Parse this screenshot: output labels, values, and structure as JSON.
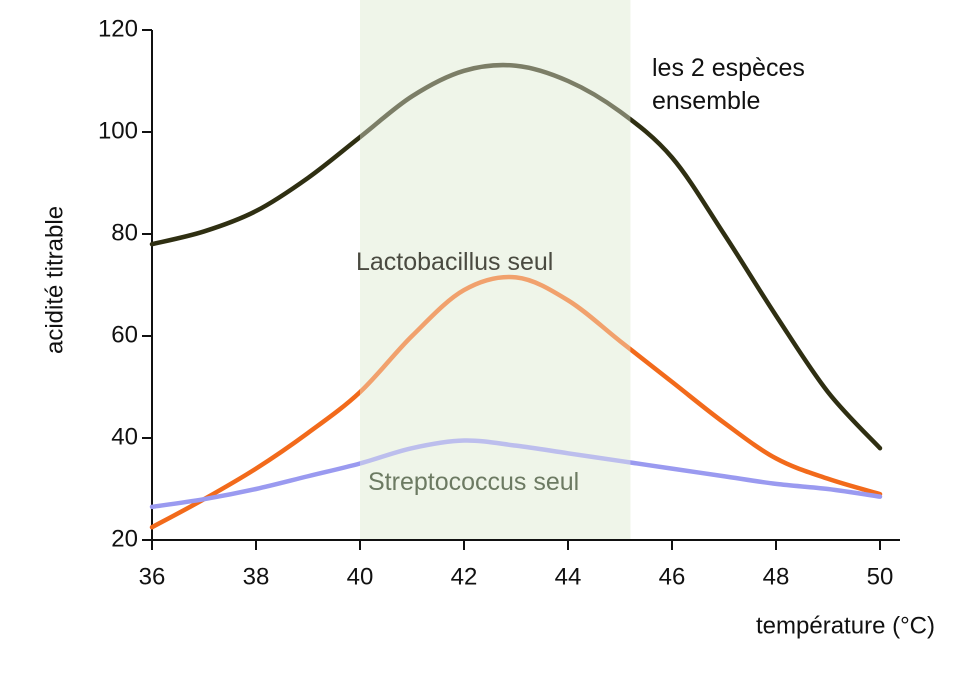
{
  "chart_data": {
    "type": "line",
    "xlabel": "température (°C)",
    "ylabel": "acidité titrable",
    "x": [
      36,
      37,
      38,
      39,
      40,
      41,
      42,
      43,
      44,
      45,
      46,
      47,
      48,
      49,
      50
    ],
    "series": [
      {
        "name": "les 2 espèces ensemble",
        "color": "#2f2f12",
        "values": [
          78,
          80.5,
          84.5,
          91,
          99,
          107,
          112,
          113,
          110,
          104,
          95,
          80,
          64,
          49,
          38
        ]
      },
      {
        "name": "Lactobacillus seul",
        "color": "#f26a1b",
        "values": [
          22.5,
          28,
          34,
          41,
          49,
          60,
          69,
          71.5,
          67,
          59,
          51,
          43,
          36,
          32,
          29
        ]
      },
      {
        "name": "Streptococcus seul",
        "color": "#9a9af0",
        "values": [
          26.5,
          28,
          30,
          32.5,
          35,
          38,
          39.5,
          38.5,
          37,
          35.5,
          34,
          32.5,
          31,
          30,
          28.5
        ]
      }
    ],
    "highlight_range": [
      40,
      45.2
    ],
    "highlight_color": "#eff5e9",
    "xlim": [
      36,
      50
    ],
    "xticks": [
      36,
      38,
      40,
      42,
      44,
      46,
      48,
      50
    ],
    "ylim": [
      20,
      120
    ],
    "yticks": [
      20,
      40,
      60,
      80,
      100,
      120
    ]
  }
}
